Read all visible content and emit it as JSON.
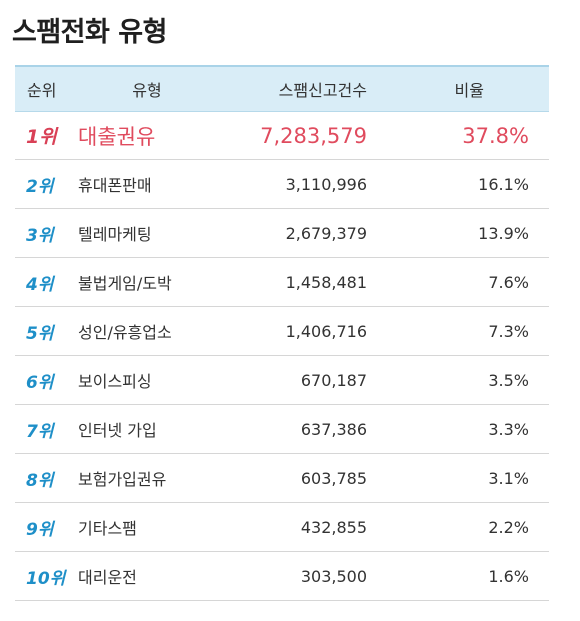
{
  "title": "스팸전화 유형",
  "table": {
    "headers": {
      "rank": "순위",
      "type": "유형",
      "count": "스팸신고건수",
      "ratio": "비율"
    },
    "rows": [
      {
        "rank": "1위",
        "type": "대출권유",
        "count": "7,283,579",
        "ratio": "37.8%"
      },
      {
        "rank": "2위",
        "type": "휴대폰판매",
        "count": "3,110,996",
        "ratio": "16.1%"
      },
      {
        "rank": "3위",
        "type": "텔레마케팅",
        "count": "2,679,379",
        "ratio": "13.9%"
      },
      {
        "rank": "4위",
        "type": "불법게임/도박",
        "count": "1,458,481",
        "ratio": "7.6%"
      },
      {
        "rank": "5위",
        "type": "성인/유흥업소",
        "count": "1,406,716",
        "ratio": "7.3%"
      },
      {
        "rank": "6위",
        "type": "보이스피싱",
        "count": "670,187",
        "ratio": "3.5%"
      },
      {
        "rank": "7위",
        "type": "인터넷 가입",
        "count": "637,386",
        "ratio": "3.3%"
      },
      {
        "rank": "8위",
        "type": "보험가입권유",
        "count": "603,785",
        "ratio": "3.1%"
      },
      {
        "rank": "9위",
        "type": "기타스팸",
        "count": "432,855",
        "ratio": "2.2%"
      },
      {
        "rank": "10위",
        "type": "대리운전",
        "count": "303,500",
        "ratio": "1.6%"
      }
    ]
  },
  "colors": {
    "header_bg": "#d9edf7",
    "rank_blue": "#1e8fc8",
    "highlight_red": "#e04b5e"
  }
}
